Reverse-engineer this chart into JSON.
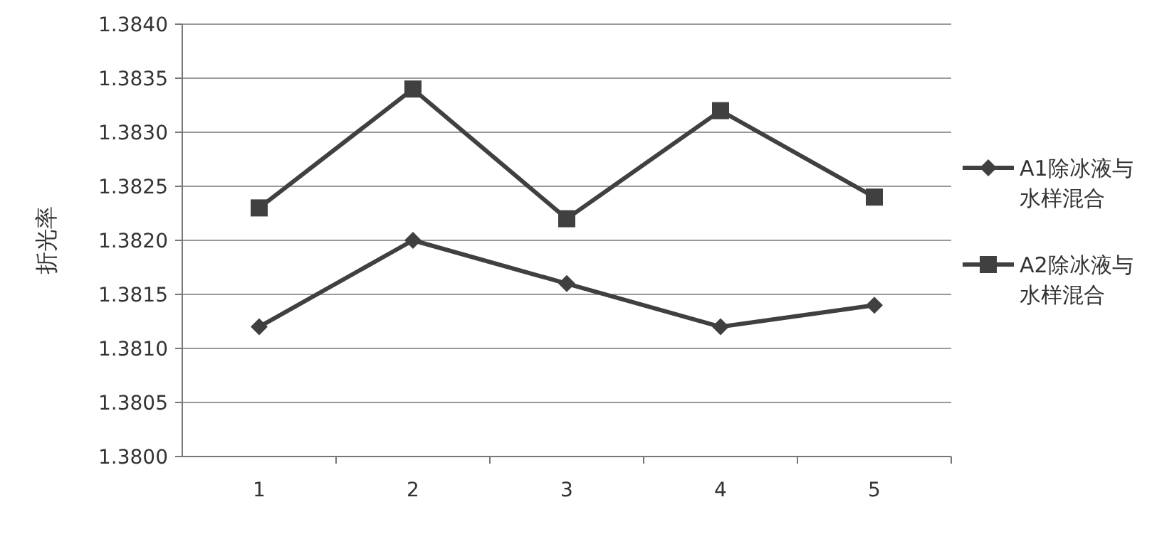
{
  "chart_data": {
    "type": "line",
    "ylabel": "折光率",
    "categories": [
      "1",
      "2",
      "3",
      "4",
      "5"
    ],
    "series": [
      {
        "name": "A1除冰液与水样混合",
        "color": "#404040",
        "marker": "diamond",
        "values": [
          1.3812,
          1.382,
          1.3816,
          1.3812,
          1.3814
        ]
      },
      {
        "name": "A2除冰液与水样混合",
        "color": "#404040",
        "marker": "square",
        "values": [
          1.3823,
          1.3834,
          1.3822,
          1.3832,
          1.3824
        ]
      }
    ],
    "ylim": [
      1.38,
      1.384
    ],
    "yticks": [
      {
        "value": 1.38,
        "label": "1.3800"
      },
      {
        "value": 1.3805,
        "label": "1.3805"
      },
      {
        "value": 1.381,
        "label": "1.3810"
      },
      {
        "value": 1.3815,
        "label": "1.3815"
      },
      {
        "value": 1.382,
        "label": "1.3820"
      },
      {
        "value": 1.3825,
        "label": "1.3825"
      },
      {
        "value": 1.383,
        "label": "1.3830"
      },
      {
        "value": 1.3835,
        "label": "1.3835"
      },
      {
        "value": 1.384,
        "label": "1.3840"
      }
    ],
    "grid": "y",
    "legend": "right",
    "line_style": "solid"
  }
}
